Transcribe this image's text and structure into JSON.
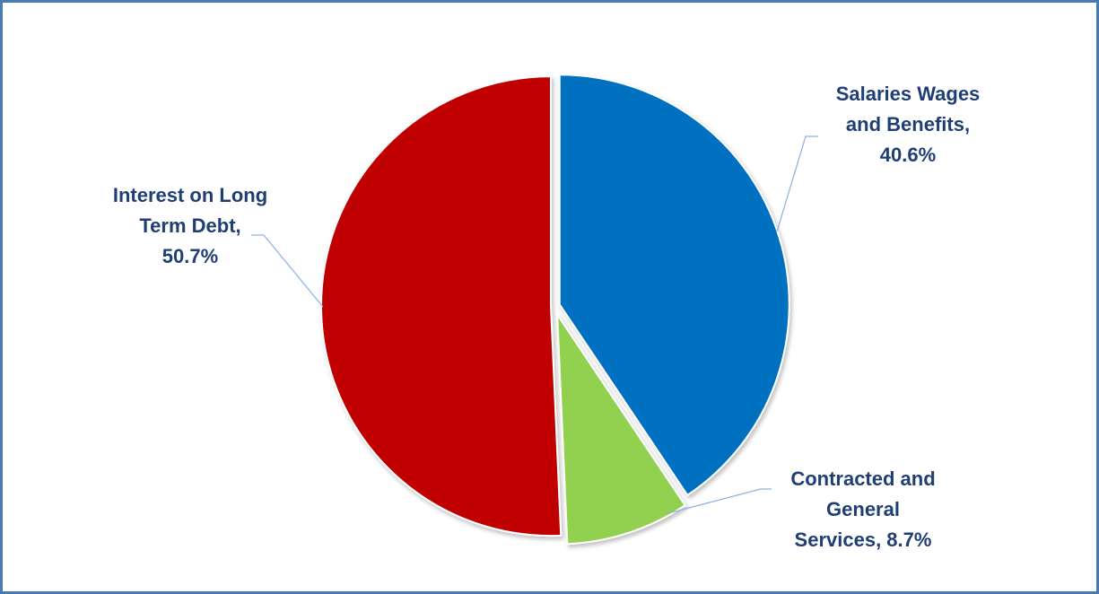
{
  "chart_data": {
    "type": "pie",
    "title": "",
    "start_angle_deg": 0,
    "direction": "clockwise",
    "slices": [
      {
        "name": "Salaries Wages and Benefits",
        "value": 40.6,
        "label_text": "40.6%",
        "color": "#0070c0"
      },
      {
        "name": "Contracted and General Services",
        "value": 8.7,
        "label_text": "8.7%",
        "color": "#92d050"
      },
      {
        "name": "Interest on Long Term Debt",
        "value": 50.7,
        "label_text": "50.7%",
        "color": "#c00000"
      }
    ],
    "data_labels": [
      {
        "lines": [
          "Salaries Wages",
          "and Benefits,",
          "40.6%"
        ]
      },
      {
        "lines": [
          "Contracted and",
          "General",
          "Services, 8.7%"
        ]
      },
      {
        "lines": [
          "Interest on Long",
          "Term Debt,",
          "50.7%"
        ]
      }
    ],
    "label_color": "#1f3f74",
    "leader_line_color": "#8eb4e3",
    "border_color": "#4a7ab5"
  }
}
